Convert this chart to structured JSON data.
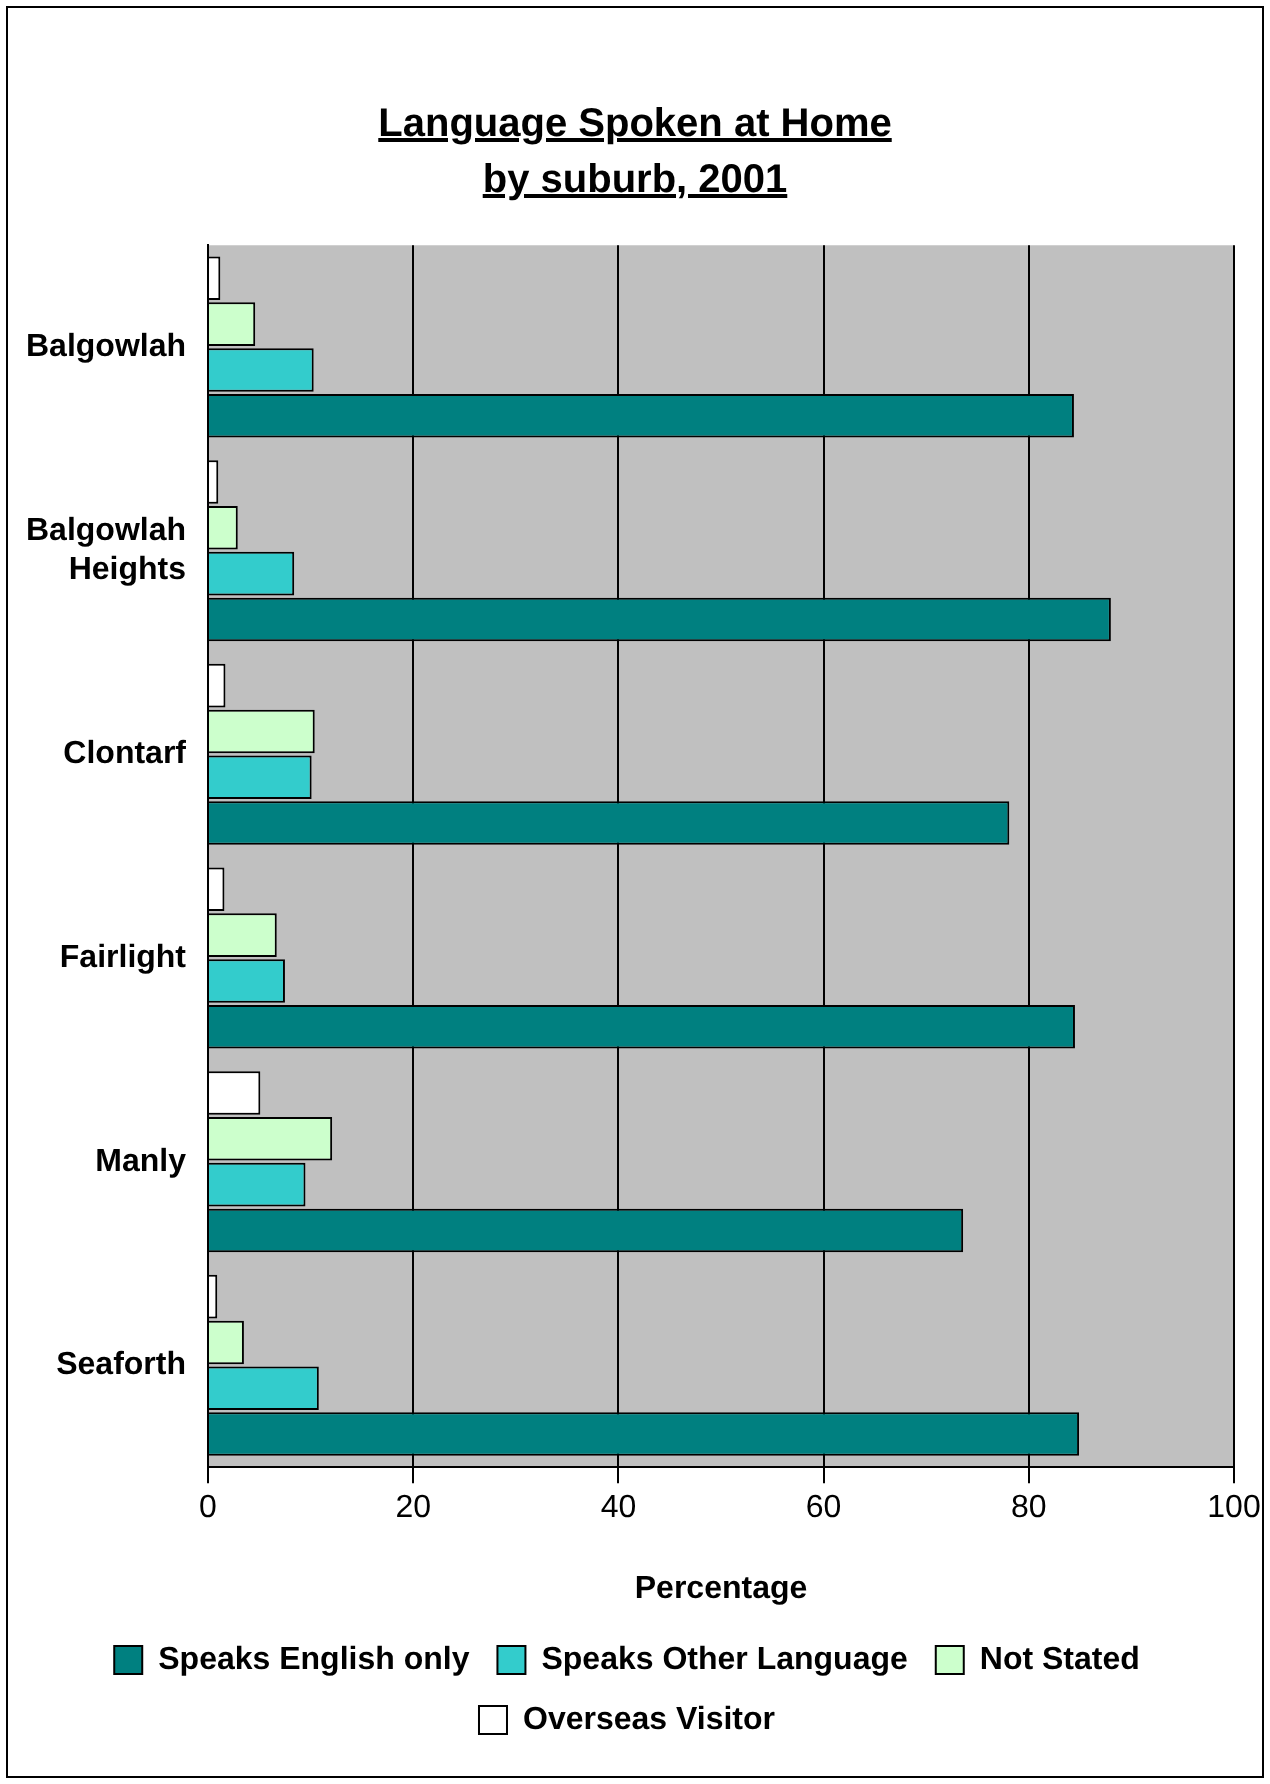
{
  "chart_data": {
    "type": "bar",
    "orientation": "horizontal",
    "title": "Language Spoken at Home\nby suburb, 2001",
    "xlabel": "Percentage",
    "categories": [
      "Balgowlah",
      "Balgowlah\nHeights",
      "Clontarf",
      "Fairlight",
      "Manly",
      "Seaforth"
    ],
    "series": [
      {
        "name": "Speaks English only",
        "color": "#008080",
        "values": [
          84.4,
          88.0,
          78.1,
          84.5,
          73.6,
          84.9
        ]
      },
      {
        "name": "Speaks Other Language",
        "color": "#33cccc",
        "values": [
          10.3,
          8.4,
          10.1,
          7.5,
          9.5,
          10.8
        ]
      },
      {
        "name": "Not Stated",
        "color": "#ccffcc",
        "values": [
          4.6,
          2.9,
          10.4,
          6.7,
          12.1,
          3.5
        ]
      },
      {
        "name": "Overseas Visitor",
        "color": "#ffffff",
        "values": [
          1.2,
          1.0,
          1.7,
          1.6,
          5.1,
          0.9
        ]
      }
    ],
    "xlim": [
      0,
      100
    ],
    "xticks": [
      0,
      20,
      40,
      60,
      80,
      100
    ],
    "grid": "x",
    "legend": "bottom"
  }
}
